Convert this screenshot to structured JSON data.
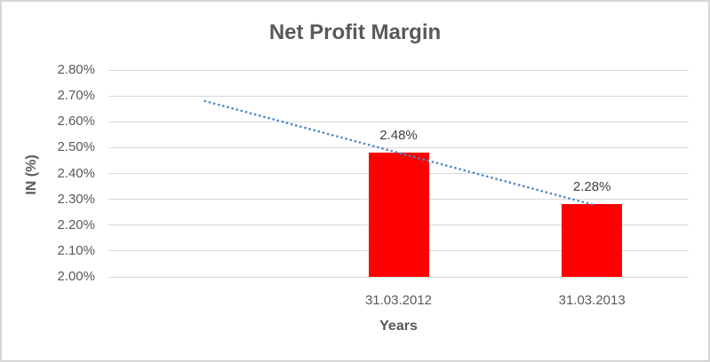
{
  "figure": {
    "background": "#ffffff",
    "border_color": "#d6d6d6"
  },
  "chart_data": {
    "type": "bar",
    "title": "Net Profit Margin",
    "xlabel": "Years",
    "ylabel": "IN (%)",
    "categories": [
      "",
      "31.03.2012",
      "31.03.2013"
    ],
    "values": [
      null,
      2.48,
      2.28
    ],
    "data_labels": [
      "",
      "2.48%",
      "2.28%"
    ],
    "ylim": [
      2.0,
      2.8
    ],
    "ytick_step": 0.1,
    "yticks": [
      "2.00%",
      "2.10%",
      "2.20%",
      "2.30%",
      "2.40%",
      "2.50%",
      "2.60%",
      "2.70%",
      "2.80%"
    ],
    "grid": true,
    "legend": "none",
    "bar_color": "#ff0000",
    "gridline_color": "#d9d9d9",
    "trendline": {
      "style": "dotted",
      "color": "#4a86c8",
      "points": [
        {
          "category_index": 0,
          "value": 2.68
        },
        {
          "category_index": 2,
          "value": 2.28
        }
      ]
    },
    "text_colors": {
      "title": "#595959",
      "axis_titles": "#595959",
      "tick_labels": "#595959",
      "data_labels": "#404040"
    }
  }
}
